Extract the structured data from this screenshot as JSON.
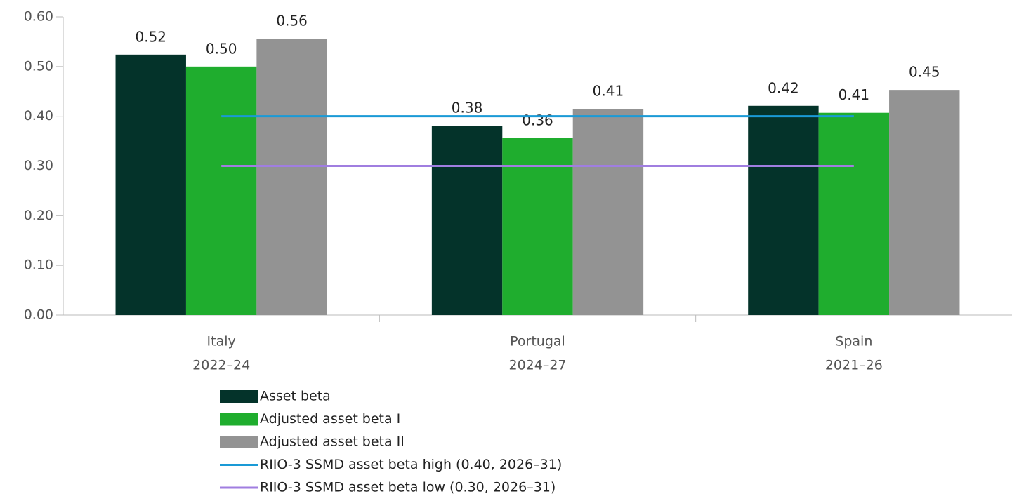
{
  "chart_data": {
    "type": "bar",
    "categories": [
      [
        "Italy",
        "2022–24"
      ],
      [
        "Portugal",
        "2024–27"
      ],
      [
        "Spain",
        "2021–26"
      ]
    ],
    "series": [
      {
        "name": "Asset beta",
        "type": "bar",
        "color": "#04332a",
        "values": [
          0.524,
          0.381,
          0.421
        ],
        "value_labels": [
          "0.52",
          "0.38",
          "0.42"
        ]
      },
      {
        "name": "Adjusted asset beta I",
        "type": "bar",
        "color": "#1fad2e",
        "values": [
          0.5,
          0.356,
          0.407
        ],
        "value_labels": [
          "0.50",
          "0.36",
          "0.41"
        ]
      },
      {
        "name": "Adjusted asset beta II",
        "type": "bar",
        "color": "#939393",
        "values": [
          0.556,
          0.415,
          0.453
        ],
        "value_labels": [
          "0.56",
          "0.41",
          "0.45"
        ]
      },
      {
        "name": "RIIO-3 SSMD asset beta high (0.40, 2026–31)",
        "type": "line",
        "color": "#1a9ad6",
        "values": [
          0.4,
          0.4,
          0.4
        ]
      },
      {
        "name": "RIIO-3 SSMD asset beta low (0.30, 2026–31)",
        "type": "line",
        "color": "#a07ee0",
        "values": [
          0.3,
          0.3,
          0.3
        ]
      }
    ],
    "ylim": [
      0,
      0.6
    ],
    "yticks": [
      {
        "value": 0,
        "label": "0.00"
      },
      {
        "value": 0.1,
        "label": "0.10"
      },
      {
        "value": 0.2,
        "label": "0.20"
      },
      {
        "value": 0.3,
        "label": "0.30"
      },
      {
        "value": 0.4,
        "label": "0.40"
      },
      {
        "value": 0.5,
        "label": "0.50"
      },
      {
        "value": 0.6,
        "label": "0.60"
      }
    ],
    "grid": false,
    "legend": "bottom"
  }
}
